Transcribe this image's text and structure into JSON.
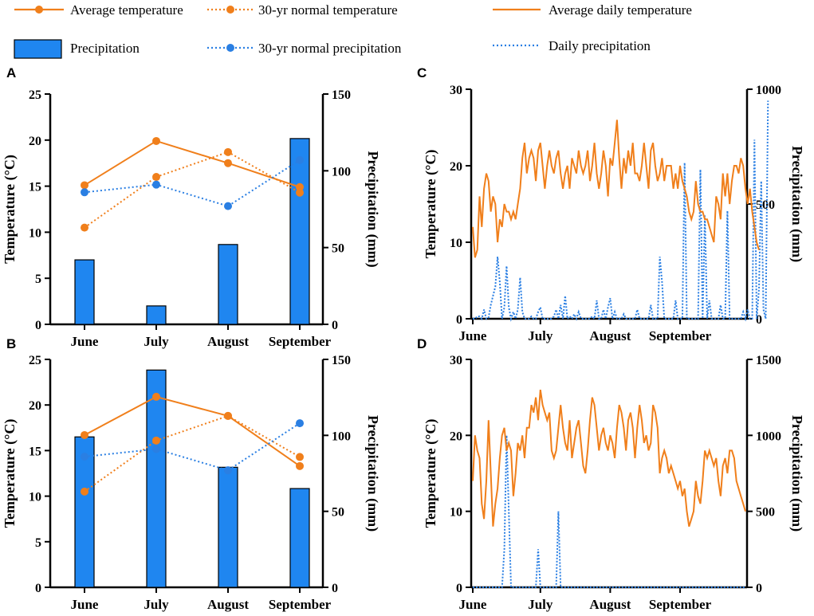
{
  "colors": {
    "orange": "#f07f1b",
    "blue": "#2a7fe3",
    "bar_fill": "#1f86f0",
    "axis": "#000000"
  },
  "legend": {
    "left": [
      {
        "label": "Average temperature",
        "style": "solid-dot",
        "color": "orange"
      },
      {
        "label": "30-yr normal temperature",
        "style": "dotted-dot",
        "color": "orange"
      },
      {
        "label": "Precipitation",
        "style": "bar",
        "color": "blue"
      },
      {
        "label": "30-yr normal precipitation",
        "style": "dotted-dot",
        "color": "blue"
      }
    ],
    "right": [
      {
        "label": "Average daily temperature",
        "style": "solid",
        "color": "orange"
      },
      {
        "label": "Daily precipitation",
        "style": "dotted",
        "color": "blue"
      }
    ]
  },
  "chart_data": [
    {
      "panel": "A",
      "type": "bar+line",
      "categories": [
        "June",
        "July",
        "August",
        "September"
      ],
      "ylabel": "Temperature (°C)",
      "y2label": "Precipitation (mm)",
      "ylim": [
        0,
        25
      ],
      "yticks": [
        0,
        5,
        10,
        15,
        20,
        25
      ],
      "y2lim": [
        0,
        150
      ],
      "y2ticks": [
        0,
        50,
        100,
        150
      ],
      "series": [
        {
          "name": "Precipitation",
          "axis": "right",
          "kind": "bar",
          "values": [
            42,
            12,
            52,
            121
          ]
        },
        {
          "name": "Average temperature",
          "axis": "left",
          "kind": "line-solid",
          "values": [
            15.1,
            19.9,
            17.5,
            14.9
          ]
        },
        {
          "name": "30-yr normal temperature",
          "axis": "left",
          "kind": "line-dotted",
          "values": [
            10.5,
            16.0,
            18.7,
            14.3
          ]
        },
        {
          "name": "30-yr normal precipitation",
          "axis": "right",
          "kind": "line-dotted-blue",
          "values": [
            86,
            91,
            77,
            107
          ]
        }
      ]
    },
    {
      "panel": "B",
      "type": "bar+line",
      "categories": [
        "June",
        "July",
        "August",
        "September"
      ],
      "ylabel": "Temperature (°C)",
      "y2label": "Precipitation (mm)",
      "ylim": [
        0,
        25
      ],
      "yticks": [
        0,
        5,
        10,
        15,
        20,
        25
      ],
      "y2lim": [
        0,
        150
      ],
      "y2ticks": [
        0,
        50,
        100,
        150
      ],
      "series": [
        {
          "name": "Precipitation",
          "axis": "right",
          "kind": "bar",
          "values": [
            99,
            143,
            79,
            65
          ]
        },
        {
          "name": "Average temperature",
          "axis": "left",
          "kind": "line-solid",
          "values": [
            16.7,
            20.9,
            18.8,
            13.3
          ]
        },
        {
          "name": "30-yr normal temperature",
          "axis": "left",
          "kind": "line-dotted",
          "values": [
            10.5,
            16.1,
            18.8,
            14.3
          ]
        },
        {
          "name": "30-yr normal precipitation",
          "axis": "right",
          "kind": "line-dotted-blue",
          "values": [
            86,
            91,
            77,
            108
          ]
        }
      ]
    },
    {
      "panel": "C",
      "type": "line",
      "categories": [
        "June",
        "July",
        "August",
        "September"
      ],
      "ylabel": "Temperature (°C)",
      "y2label": "Precipitation (mm)",
      "ylim": [
        0,
        30
      ],
      "yticks": [
        0,
        10,
        20,
        30
      ],
      "y2lim": [
        0,
        1000
      ],
      "y2ticks": [
        0,
        500,
        1000
      ],
      "days": 122,
      "month_starts": [
        0,
        30,
        61,
        92
      ],
      "temperature": [
        12,
        8,
        9,
        16,
        12,
        17,
        19,
        18,
        14,
        16,
        15,
        10,
        13,
        12,
        15,
        14,
        14,
        13,
        14,
        13,
        15,
        17,
        21,
        23,
        19,
        21,
        22,
        21,
        18,
        22,
        23,
        20,
        17,
        20,
        22,
        20,
        19,
        21,
        22,
        19,
        17,
        19,
        20,
        17,
        21,
        20,
        19,
        22,
        20,
        19,
        20,
        22,
        18,
        20,
        23,
        19,
        17,
        19,
        22,
        20,
        16,
        21,
        20,
        23,
        26,
        21,
        17,
        21,
        19,
        22,
        20,
        23,
        19,
        19,
        18,
        20,
        23,
        20,
        17,
        22,
        23,
        20,
        18,
        19,
        21,
        18,
        20,
        20,
        20,
        17,
        19,
        17,
        20,
        18,
        17,
        16,
        14,
        13,
        14,
        18,
        15,
        14,
        14,
        13,
        13,
        12,
        11,
        10,
        16,
        15,
        13,
        19,
        16,
        19,
        15,
        18,
        20,
        20,
        19,
        21,
        20,
        17,
        15,
        17,
        14,
        12,
        10,
        9
      ],
      "precipitation": [
        0,
        0,
        10,
        10,
        0,
        40,
        0,
        5,
        60,
        100,
        140,
        270,
        160,
        0,
        50,
        230,
        50,
        0,
        30,
        0,
        40,
        180,
        30,
        0,
        0,
        0,
        10,
        0,
        0,
        30,
        50,
        0,
        0,
        0,
        0,
        0,
        10,
        40,
        0,
        60,
        0,
        100,
        0,
        10,
        0,
        20,
        0,
        30,
        0,
        0,
        0,
        0,
        0,
        10,
        0,
        80,
        0,
        0,
        40,
        0,
        50,
        90,
        0,
        30,
        0,
        0,
        0,
        20,
        0,
        0,
        0,
        0,
        0,
        40,
        0,
        0,
        0,
        0,
        0,
        60,
        0,
        0,
        0,
        270,
        160,
        0,
        0,
        0,
        0,
        0,
        80,
        0,
        0,
        0,
        680,
        0,
        0,
        0,
        0,
        0,
        0,
        650,
        0,
        450,
        0,
        80,
        0,
        0,
        0,
        0,
        60,
        0,
        0,
        470,
        0,
        0,
        0,
        0,
        0,
        0,
        30,
        0,
        40,
        0,
        0,
        780,
        0,
        130,
        600,
        40,
        0,
        950
      ]
    },
    {
      "panel": "D",
      "type": "line",
      "categories": [
        "June",
        "July",
        "August",
        "September"
      ],
      "ylabel": "Temperature (°C)",
      "y2label": "Precipitation (mm)",
      "ylim": [
        0,
        30
      ],
      "yticks": [
        0,
        10,
        20,
        30
      ],
      "y2lim": [
        0,
        1500
      ],
      "y2ticks": [
        0,
        500,
        1000,
        1500
      ],
      "days": 122,
      "month_starts": [
        0,
        30,
        61,
        92
      ],
      "temperature": [
        14,
        20,
        18,
        17,
        11,
        9,
        14,
        22,
        15,
        8,
        11,
        13,
        17,
        20,
        21,
        18,
        19,
        18,
        12,
        15,
        19,
        18,
        20,
        17,
        21,
        21,
        24,
        23,
        25,
        22,
        26,
        24,
        23,
        22,
        23,
        18,
        17,
        18,
        21,
        24,
        21,
        19,
        18,
        22,
        17,
        19,
        21,
        22,
        19,
        16,
        15,
        18,
        22,
        25,
        24,
        21,
        18,
        20,
        21,
        19,
        18,
        20,
        19,
        17,
        21,
        24,
        23,
        21,
        18,
        22,
        23,
        21,
        17,
        21,
        24,
        22,
        19,
        20,
        18,
        19,
        24,
        23,
        21,
        15,
        17,
        18,
        17,
        15,
        16,
        15,
        14,
        13,
        14,
        12,
        13,
        10,
        8,
        9,
        10,
        14,
        12,
        11,
        14,
        18,
        17,
        18,
        17,
        16,
        17,
        14,
        12,
        16,
        17,
        15,
        18,
        18,
        17,
        14,
        13,
        12,
        11,
        10
      ],
      "precipitation": [
        0,
        0,
        0,
        0,
        0,
        0,
        0,
        0,
        0,
        0,
        0,
        0,
        0,
        0,
        250,
        1000,
        500,
        0,
        0,
        0,
        0,
        0,
        0,
        0,
        0,
        0,
        0,
        0,
        0,
        250,
        0,
        0,
        0,
        0,
        0,
        0,
        0,
        0,
        500,
        0,
        0,
        0,
        0,
        0,
        0,
        0,
        0,
        0,
        0,
        0,
        0,
        0,
        0,
        0,
        0,
        0,
        0,
        0,
        0,
        0,
        0,
        0,
        0,
        0,
        0,
        0,
        0,
        0,
        0,
        0,
        0,
        0,
        0,
        0,
        0,
        0,
        0,
        0,
        0,
        0,
        0,
        0,
        0,
        0,
        0,
        0,
        0,
        0,
        0,
        0,
        0,
        0,
        0,
        0,
        0,
        0,
        0,
        0,
        0,
        0,
        0,
        0,
        0,
        0,
        0,
        0,
        0,
        0,
        0,
        0,
        0,
        0,
        0,
        0,
        0,
        0,
        0,
        0,
        0,
        0,
        0,
        0
      ]
    }
  ]
}
